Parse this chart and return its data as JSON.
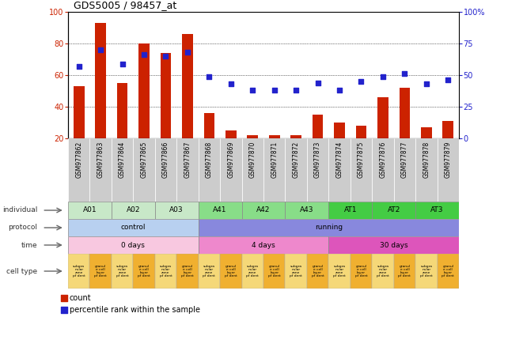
{
  "title": "GDS5005 / 98457_at",
  "samples": [
    "GSM977862",
    "GSM977863",
    "GSM977864",
    "GSM977865",
    "GSM977866",
    "GSM977867",
    "GSM977868",
    "GSM977869",
    "GSM977870",
    "GSM977871",
    "GSM977872",
    "GSM977873",
    "GSM977874",
    "GSM977875",
    "GSM977876",
    "GSM977877",
    "GSM977878",
    "GSM977879"
  ],
  "count_values": [
    53,
    93,
    55,
    80,
    74,
    86,
    36,
    25,
    22,
    22,
    22,
    35,
    30,
    28,
    46,
    52,
    27,
    31
  ],
  "percentile_values": [
    57,
    70,
    59,
    66,
    65,
    68,
    49,
    43,
    38,
    38,
    38,
    44,
    38,
    45,
    49,
    51,
    43,
    46
  ],
  "bar_color": "#cc2200",
  "marker_color": "#2222cc",
  "left_ylim": [
    20,
    100
  ],
  "left_yticks": [
    20,
    40,
    60,
    80,
    100
  ],
  "right_ylim": [
    0,
    100
  ],
  "right_yticks": [
    0,
    25,
    50,
    75,
    100
  ],
  "right_yticklabels": [
    "0",
    "25",
    "50",
    "75",
    "100%"
  ],
  "grid_color": "black",
  "bg_color": "#ffffff",
  "xtick_bg": "#cccccc",
  "individual_groups": [
    {
      "label": "A01",
      "start": 0,
      "end": 2,
      "color": "#c8e8c8"
    },
    {
      "label": "A02",
      "start": 2,
      "end": 4,
      "color": "#c8e8c8"
    },
    {
      "label": "A03",
      "start": 4,
      "end": 6,
      "color": "#c8e8c8"
    },
    {
      "label": "A41",
      "start": 6,
      "end": 8,
      "color": "#88dd88"
    },
    {
      "label": "A42",
      "start": 8,
      "end": 10,
      "color": "#88dd88"
    },
    {
      "label": "A43",
      "start": 10,
      "end": 12,
      "color": "#88dd88"
    },
    {
      "label": "AT1",
      "start": 12,
      "end": 14,
      "color": "#44cc44"
    },
    {
      "label": "AT2",
      "start": 14,
      "end": 16,
      "color": "#44cc44"
    },
    {
      "label": "AT3",
      "start": 16,
      "end": 18,
      "color": "#44cc44"
    }
  ],
  "protocol_groups": [
    {
      "label": "control",
      "start": 0,
      "end": 6,
      "color": "#b8d0f0"
    },
    {
      "label": "running",
      "start": 6,
      "end": 18,
      "color": "#8888dd"
    }
  ],
  "time_groups": [
    {
      "label": "0 days",
      "start": 0,
      "end": 6,
      "color": "#f8c8e0"
    },
    {
      "label": "4 days",
      "start": 6,
      "end": 12,
      "color": "#ee88cc"
    },
    {
      "label": "30 days",
      "start": 12,
      "end": 18,
      "color": "#dd55bb"
    }
  ],
  "cell_type_labels_short": [
    "subgra\nnular\nzone\npf dent",
    "granul\ne cell\nlayer\npf dent",
    "subgra\nnular\nzone\npf dent",
    "granul\ne cell\nlayer\npf dent",
    "subgra\nnular\nzone\npf dent",
    "granul\ne cell\nlayer\npf dent",
    "subgra\nnular\nzone\npf dent",
    "granul\ne cell\nlayer\npf dent",
    "subgra\nnular\nzone\npf dent",
    "granul\ne cell\nlayer\npf dent",
    "subgra\nnular\nzone\npf dent",
    "granul\ne cell\nlayer\npf dent",
    "subgra\nnular\nzone\npf dent",
    "granul\ne cell\nlayer\npf dent",
    "subgra\nnular\nzone\npf dent",
    "granul\ne cell\nlayer\npf dent",
    "subgra\nnular\nzone\npf dent",
    "granul\ne cell\nlayer\npf dent"
  ],
  "cell_type_colors": [
    "#f5d878",
    "#f0b030",
    "#f5d878",
    "#f0b030",
    "#f5d878",
    "#f0b030",
    "#f5d878",
    "#f0b030",
    "#f5d878",
    "#f0b030",
    "#f5d878",
    "#f0b030",
    "#f5d878",
    "#f0b030",
    "#f5d878",
    "#f0b030",
    "#f5d878",
    "#f0b030"
  ],
  "row_labels": [
    "individual",
    "protocol",
    "time",
    "cell type"
  ],
  "row_label_color": "#333333",
  "arrow_color": "#666666"
}
